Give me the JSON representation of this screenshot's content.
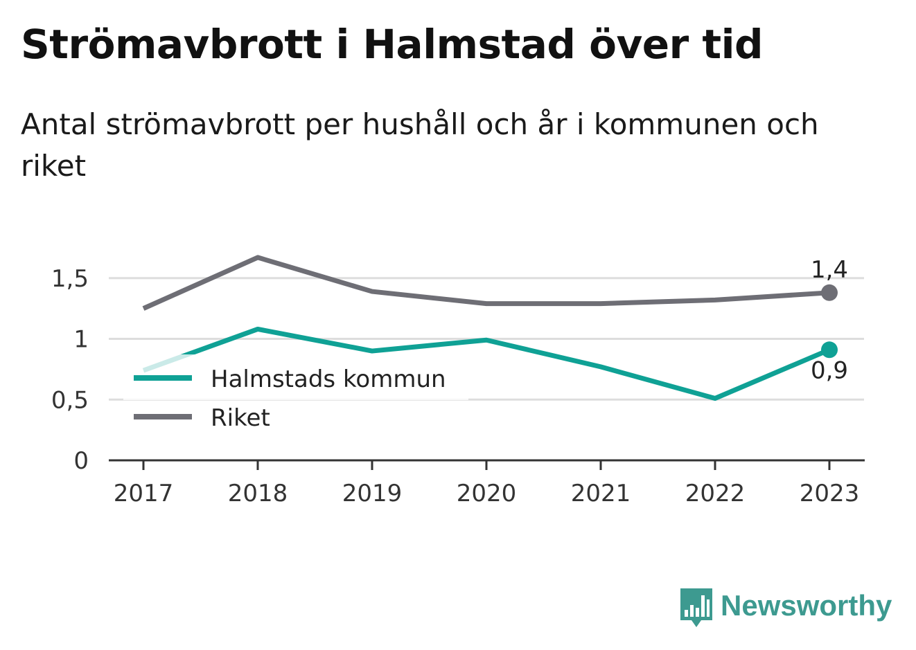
{
  "title": "Strömavbrott i Halmstad över tid",
  "subtitle": "Antal strömavbrott per hushåll och år i kommunen och riket",
  "brand": {
    "name": "Newsworthy",
    "icon": "bar-chart-speech-bubble-icon",
    "color": "#3d9a90"
  },
  "chart_data": {
    "type": "line",
    "x": [
      "2017",
      "2018",
      "2019",
      "2020",
      "2021",
      "2022",
      "2023"
    ],
    "ylim": [
      0,
      1.7
    ],
    "yticks": [
      {
        "value": 0,
        "label": "0"
      },
      {
        "value": 0.5,
        "label": "0,5"
      },
      {
        "value": 1,
        "label": "1"
      },
      {
        "value": 1.5,
        "label": "1,5"
      }
    ],
    "grid": true,
    "legend_position": "left",
    "series": [
      {
        "name": "Halmstads kommun",
        "color": "#0fa195",
        "values": [
          0.74,
          1.08,
          0.9,
          0.99,
          0.77,
          0.51,
          0.91
        ],
        "end_label": "0,9",
        "end_label_position": "below"
      },
      {
        "name": "Riket",
        "color": "#6e6e75",
        "values": [
          1.25,
          1.67,
          1.39,
          1.29,
          1.29,
          1.32,
          1.38
        ],
        "end_label": "1,4",
        "end_label_position": "above"
      }
    ]
  }
}
